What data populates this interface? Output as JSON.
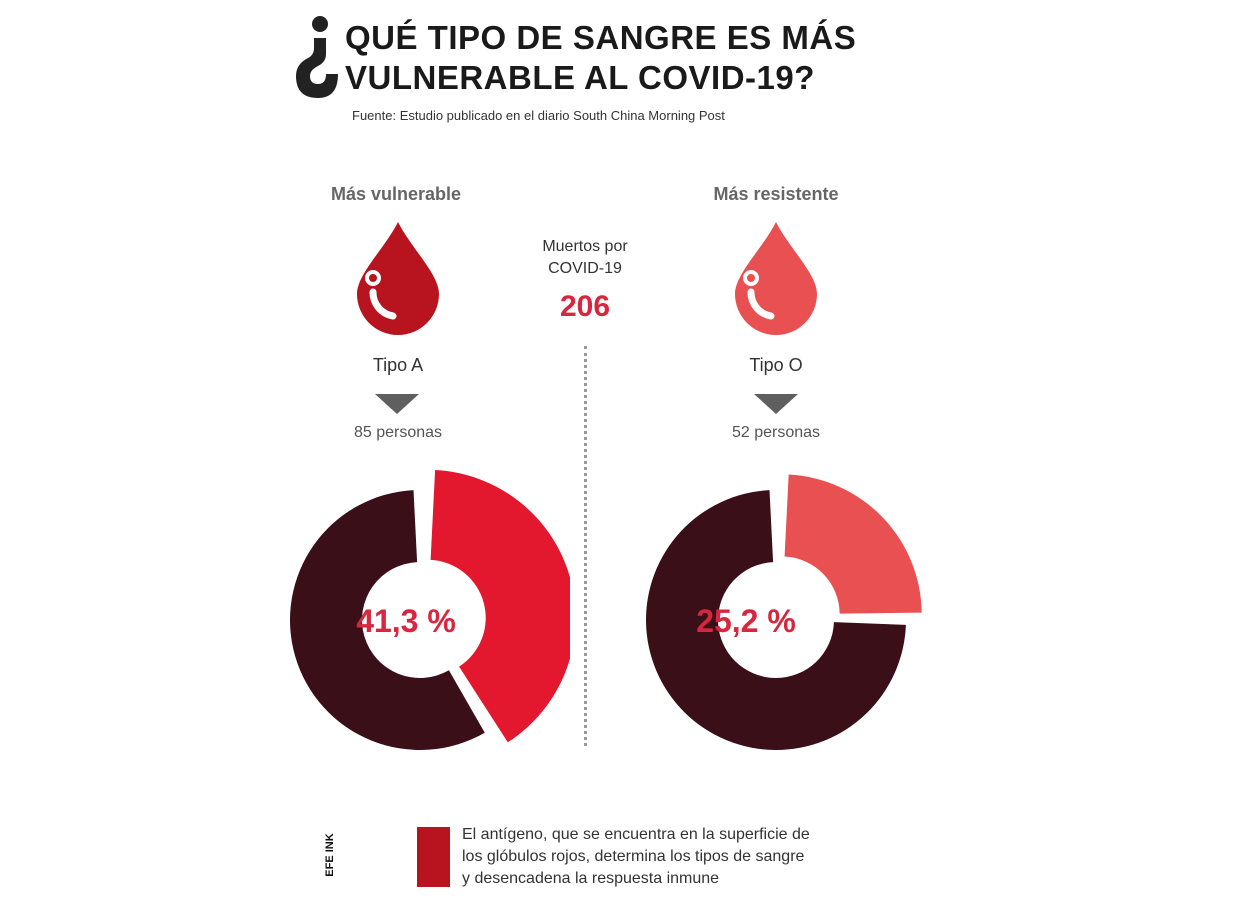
{
  "header": {
    "title_line1": "QUÉ TIPO DE SANGRE ES MÁS",
    "title_line2": "VULNERABLE AL COVID-19?",
    "source": "Fuente: Estudio publicado en el diario South China Morning Post"
  },
  "center": {
    "deaths_label_line1": "Muertos por",
    "deaths_label_line2": "COVID-19",
    "deaths_value": "206"
  },
  "left": {
    "heading": "Más vulnerable",
    "type": "Tipo A",
    "count": "85 personas",
    "percent_label": "41,3 %"
  },
  "right": {
    "heading": "Más resistente",
    "type": "Tipo O",
    "count": "52 personas",
    "percent_label": "25,2 %"
  },
  "legend": {
    "line1": "El antígeno, que se encuentra en la superficie de",
    "line2": "los glóbulos rojos, determina los tipos de sangre",
    "line3": "y desencadena la respuesta inmune"
  },
  "logo_text": "EFE INK",
  "colors": {
    "dark": "#3a0f17",
    "type_a": "#e3172e",
    "type_o": "#e85051",
    "drop_a": "#b8141f",
    "drop_o": "#e85051",
    "highlight": "#d7263d",
    "legend_swatch": "#b8141f"
  },
  "icons": {
    "question": "inverted-question-mark-icon",
    "drop": "blood-drop-icon",
    "arrow": "down-triangle-icon"
  },
  "chart_data": [
    {
      "type": "pie",
      "label": "Tipo A",
      "deaths": 206,
      "count": 85,
      "values": [
        41.3,
        58.7
      ]
    },
    {
      "type": "pie",
      "label": "Tipo O",
      "deaths": 206,
      "count": 52,
      "values": [
        25.2,
        74.8
      ]
    }
  ]
}
